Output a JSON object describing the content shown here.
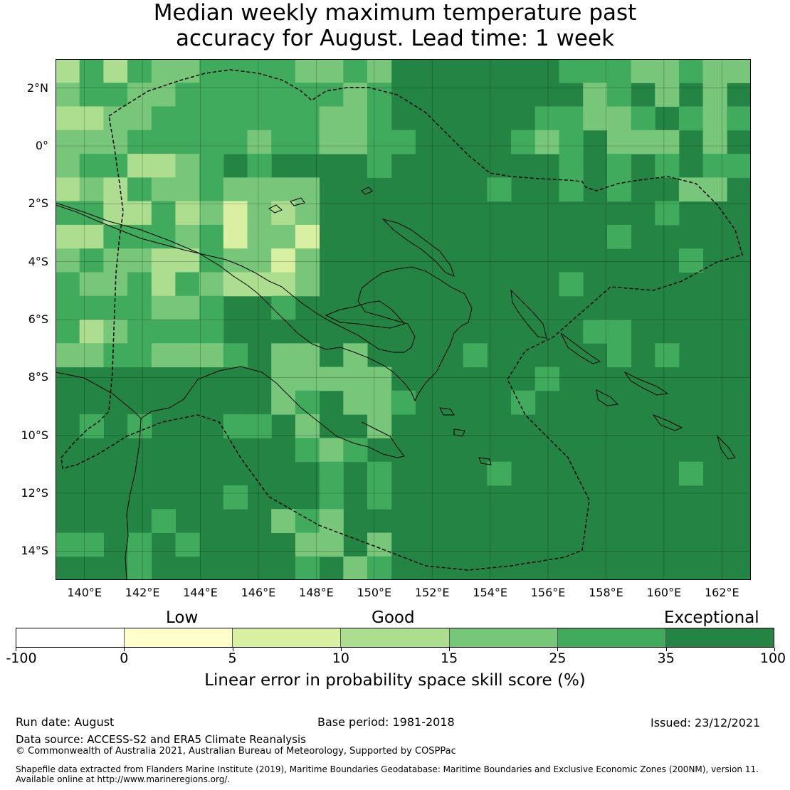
{
  "title": {
    "line1": "Median weekly maximum temperature past",
    "line2": "accuracy for August. Lead time: 1 week"
  },
  "map": {
    "lon_range": [
      139,
      163
    ],
    "lat_range": [
      -15,
      3
    ],
    "lat_ticks": [
      {
        "value": 2,
        "label": "2°N"
      },
      {
        "value": 0,
        "label": "0°"
      },
      {
        "value": -2,
        "label": "2°S"
      },
      {
        "value": -4,
        "label": "4°S"
      },
      {
        "value": -6,
        "label": "6°S"
      },
      {
        "value": -8,
        "label": "8°S"
      },
      {
        "value": -10,
        "label": "10°S"
      },
      {
        "value": -12,
        "label": "12°S"
      },
      {
        "value": -14,
        "label": "14°S"
      }
    ],
    "lon_ticks": [
      {
        "value": 140,
        "label": "140°E"
      },
      {
        "value": 142,
        "label": "142°E"
      },
      {
        "value": 144,
        "label": "144°E"
      },
      {
        "value": 146,
        "label": "146°E"
      },
      {
        "value": 148,
        "label": "148°E"
      },
      {
        "value": 150,
        "label": "150°E"
      },
      {
        "value": 152,
        "label": "152°E"
      },
      {
        "value": 154,
        "label": "154°E"
      },
      {
        "value": 156,
        "label": "156°E"
      },
      {
        "value": 158,
        "label": "158°E"
      },
      {
        "value": 160,
        "label": "160°E"
      },
      {
        "value": 162,
        "label": "162°E"
      }
    ],
    "dominant_category": "35 to 100 (exceptional)",
    "regions": [
      {
        "name": "north-west highlands region",
        "category": "15 to 25"
      },
      {
        "name": "western coast patches",
        "category": "0 to 10"
      },
      {
        "name": "north-east ocean patch",
        "category": "15 to 25"
      },
      {
        "name": "central and southern ocean",
        "category": "35 to 100"
      }
    ]
  },
  "colorbar": {
    "category_labels": [
      "Low",
      "Good",
      "Exceptional"
    ],
    "colors": [
      "#ffffff",
      "#ffffcc",
      "#d9f0a3",
      "#addd8e",
      "#78c679",
      "#41ab5d",
      "#238443"
    ],
    "ticks": [
      "-100",
      "0",
      "5",
      "10",
      "15",
      "25",
      "35",
      "100"
    ],
    "axis_title": "Linear error in probability space skill score (%)"
  },
  "footer": {
    "run_date": "Run date: August",
    "base_period": "Base period: 1981-2018",
    "issued": "Issued: 23/12/2021",
    "data_source": "Data source: ACCESS-S2 and ERA5 Climate Reanalysis",
    "copyright": "© Commonwealth of Australia 2021, Australian Bureau of Meteorology, Supported by COSPPac",
    "shapefile_line1": "Shapefile data extracted from Flanders Marine Institute (2019), Maritime Boundaries Geodatabase: Maritime Boundaries and Exclusive Economic Zones (200NM), version 11.",
    "shapefile_line2": "Available online at http://www.marineregions.org/."
  }
}
